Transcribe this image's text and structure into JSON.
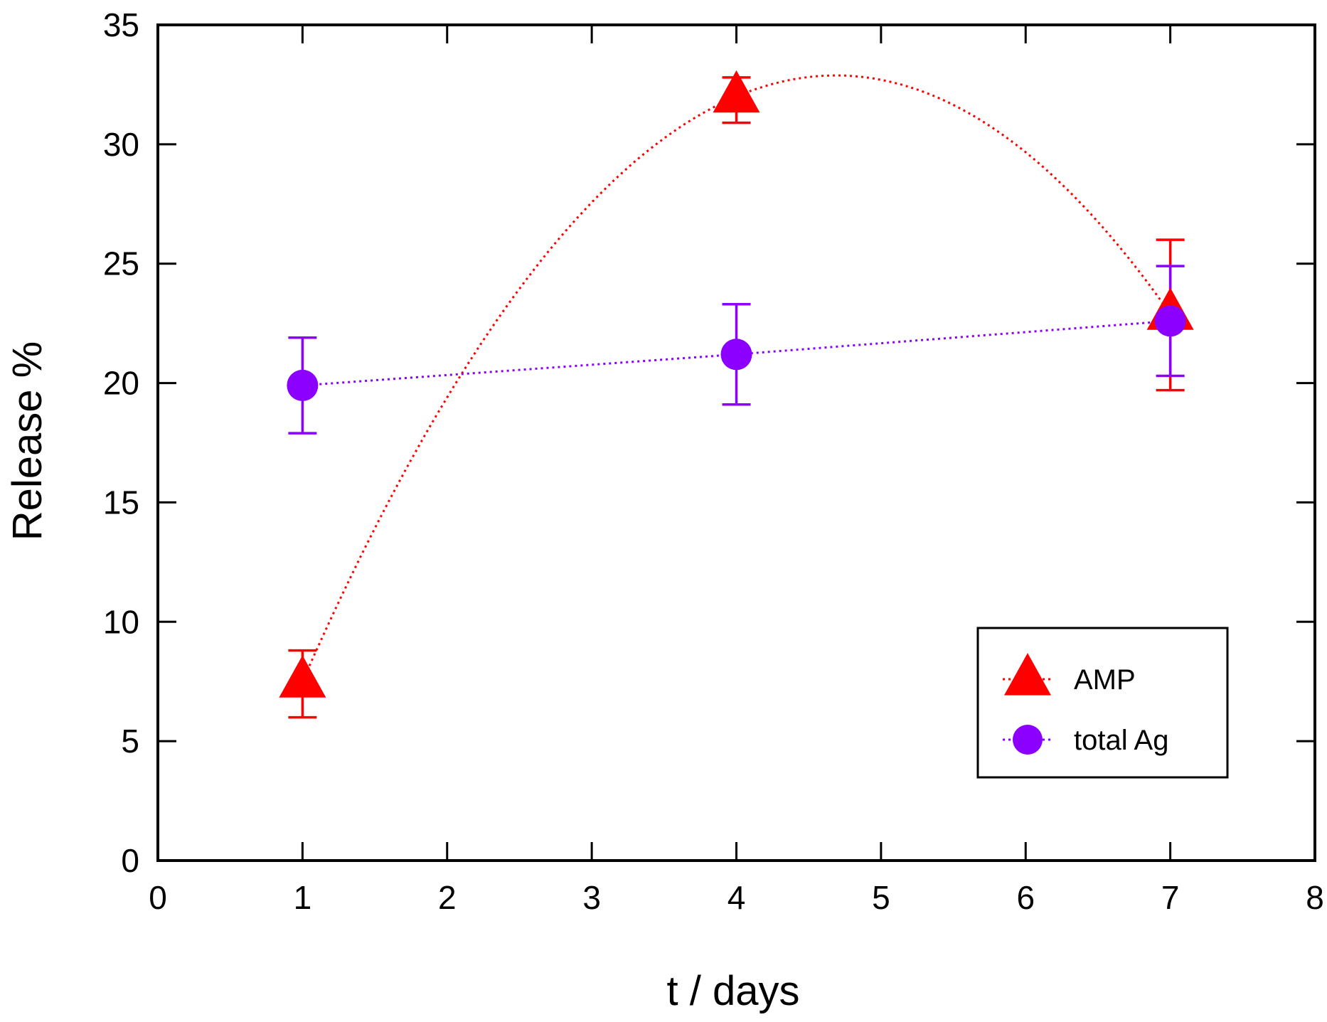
{
  "chart_data": {
    "type": "scatter",
    "title": "",
    "xlabel": "t / days",
    "ylabel": "Release %",
    "xlim": [
      0,
      8
    ],
    "ylim": [
      0,
      35
    ],
    "xticks": [
      0,
      1,
      2,
      3,
      4,
      5,
      6,
      7,
      8
    ],
    "yticks": [
      0,
      5,
      10,
      15,
      20,
      25,
      30,
      35
    ],
    "grid": false,
    "legend_position": "bottom-right",
    "series": [
      {
        "name": "AMP",
        "marker": "triangle",
        "color": "#ff0000",
        "line": "dotted-smooth",
        "points": [
          {
            "x": 1,
            "y": 7.5,
            "err_low": 6.0,
            "err_high": 8.8
          },
          {
            "x": 4,
            "y": 32.0,
            "err_low": 30.9,
            "err_high": 32.8
          },
          {
            "x": 7,
            "y": 22.9,
            "err_low": 19.7,
            "err_high": 26.0
          }
        ]
      },
      {
        "name": "total Ag",
        "marker": "circle",
        "color": "#8b00ff",
        "line": "dotted-linear",
        "points": [
          {
            "x": 1,
            "y": 19.9,
            "err_low": 17.9,
            "err_high": 21.9
          },
          {
            "x": 4,
            "y": 21.2,
            "err_low": 19.1,
            "err_high": 23.3
          },
          {
            "x": 7,
            "y": 22.6,
            "err_low": 20.3,
            "err_high": 24.9
          }
        ]
      }
    ]
  }
}
